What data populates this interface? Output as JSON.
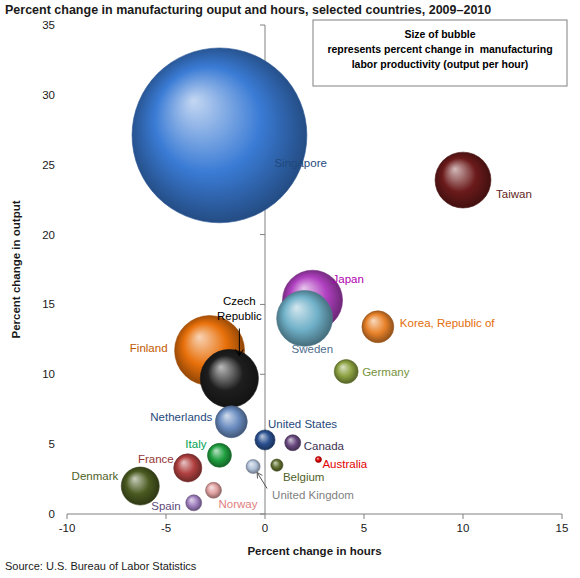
{
  "chart_data": {
    "type": "bubble",
    "title": "Percent change in manufacturing ouput and hours, selected countries, 2009–2010",
    "annotations": [
      "Size of bubble",
      "represents percent change in  manufacturing",
      "labor productivity (output per hour)"
    ],
    "x_label": "Percent change in hours",
    "y_label": "Percent change in output",
    "source": "Source: U.S. Bureau of Labor Statistics",
    "xlim": [
      -10,
      15
    ],
    "xticks": [
      -10,
      -5,
      0,
      5,
      10,
      15
    ],
    "ylim": [
      0,
      35
    ],
    "yticks": [
      0,
      5,
      10,
      15,
      20,
      25,
      30,
      35
    ],
    "labels": [
      "Singapore",
      "Taiwan",
      "Japan",
      "Sweden",
      "Korea, Republic of",
      "Finland",
      "Czech Republic",
      "Germany",
      "Netherlands",
      "United States",
      "Canada",
      "Australia",
      "Italy",
      "France",
      "Denmark",
      "Spain",
      "Norway",
      "United Kingdom",
      "Belgium"
    ],
    "x": [
      -2.3,
      10.0,
      2.4,
      2.0,
      5.7,
      -2.8,
      -1.8,
      4.1,
      -1.7,
      0.0,
      1.4,
      2.7,
      -2.3,
      -3.9,
      -6.3,
      -3.6,
      -2.6,
      -0.6,
      0.6
    ],
    "y": [
      27.1,
      23.9,
      15.3,
      14.0,
      13.4,
      11.7,
      9.7,
      10.2,
      6.6,
      5.3,
      5.1,
      3.9,
      4.2,
      3.3,
      2.0,
      0.8,
      1.7,
      3.4,
      3.5
    ],
    "sizes": [
      46,
      14.7,
      15.8,
      14.7,
      8.4,
      18.4,
      15.3,
      6.3,
      8.4,
      5.3,
      4.2,
      1.6,
      6.3,
      7.4,
      10,
      4.2,
      4.2,
      3.7,
      3.2
    ],
    "colors": [
      "#3a7bd5",
      "#6b1a1a",
      "#b040c0",
      "#6fb0c8",
      "#e8822a",
      "#e8700a",
      "#1e1e1e",
      "#8aa040",
      "#6a8cc0",
      "#2a5090",
      "#6a4a80",
      "#e00000",
      "#20a040",
      "#b04040",
      "#4a5a20",
      "#a080c0",
      "#e0a0a0",
      "#b0c0d8",
      "#607030"
    ]
  }
}
